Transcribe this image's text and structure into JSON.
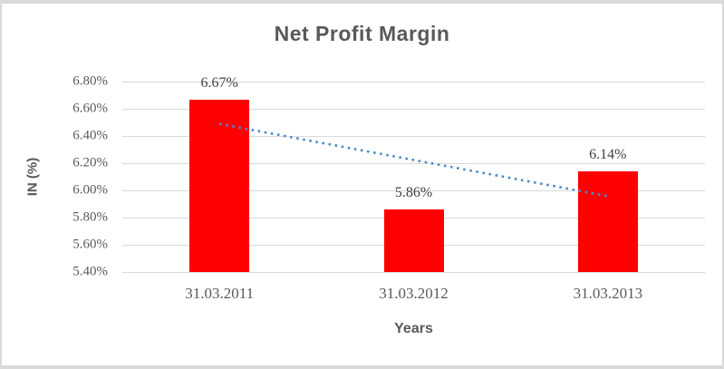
{
  "chart": {
    "title": "Net Profit Margin",
    "x_axis_title": "Years",
    "y_axis_title": "IN (%)"
  },
  "chart_data": {
    "type": "bar",
    "title": "Net Profit Margin",
    "xlabel": "Years",
    "ylabel": "IN (%)",
    "categories": [
      "31.03.2011",
      "31.03.2012",
      "31.03.2013"
    ],
    "values": [
      6.67,
      5.86,
      6.14
    ],
    "data_labels": [
      "6.67%",
      "5.86%",
      "6.14%"
    ],
    "ytick_labels": [
      "6.80%",
      "6.60%",
      "6.40%",
      "6.20%",
      "6.00%",
      "5.80%",
      "5.60%",
      "5.40%"
    ],
    "ylim": [
      5.4,
      6.8
    ],
    "ytick_step": 0.2,
    "grid": true,
    "legend": "none",
    "bar_color": "#ff0000",
    "trendline": {
      "style": "dotted",
      "color": "#4e8ac8",
      "start_value": 6.489,
      "end_value": 5.958
    },
    "colors": {
      "title_text": "#595959",
      "tick_text": "#595959",
      "data_label_text": "#3f3f3f",
      "gridline": "#d9d9d9",
      "frame_border": "#d9d9d9"
    }
  }
}
